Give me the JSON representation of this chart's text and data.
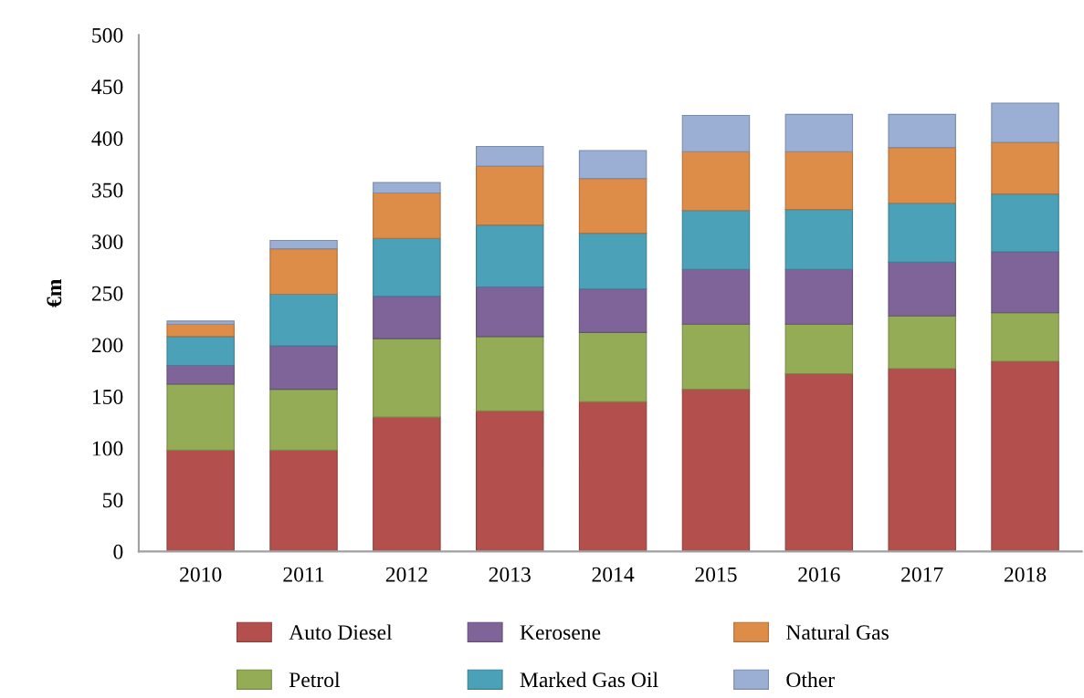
{
  "chart_data": {
    "type": "bar",
    "stacked": true,
    "ylabel": "€m",
    "categories": [
      "2010",
      "2011",
      "2012",
      "2013",
      "2014",
      "2015",
      "2016",
      "2017",
      "2018"
    ],
    "ylim": [
      0,
      500
    ],
    "yticks": [
      0,
      50,
      100,
      150,
      200,
      250,
      300,
      350,
      400,
      450,
      500
    ],
    "grid": false,
    "legend": "bottom",
    "series": [
      {
        "name": "Auto Diesel",
        "color": "#b3504d",
        "values": [
          98,
          98,
          130,
          136,
          145,
          157,
          172,
          177,
          184
        ]
      },
      {
        "name": "Petrol",
        "color": "#95ac57",
        "values": [
          64,
          59,
          76,
          72,
          67,
          63,
          48,
          51,
          47
        ]
      },
      {
        "name": "Kerosene",
        "color": "#7e6499",
        "values": [
          18,
          42,
          41,
          48,
          42,
          53,
          53,
          52,
          59
        ]
      },
      {
        "name": "Marked Gas Oil",
        "color": "#4ba1b8",
        "values": [
          28,
          50,
          56,
          60,
          54,
          57,
          58,
          57,
          56
        ]
      },
      {
        "name": "Natural Gas",
        "color": "#dd8d48",
        "values": [
          12,
          44,
          44,
          57,
          53,
          57,
          56,
          54,
          50
        ]
      },
      {
        "name": "Other",
        "color": "#9bafd5",
        "values": [
          3,
          8,
          10,
          19,
          27,
          35,
          36,
          32,
          38
        ]
      }
    ]
  }
}
